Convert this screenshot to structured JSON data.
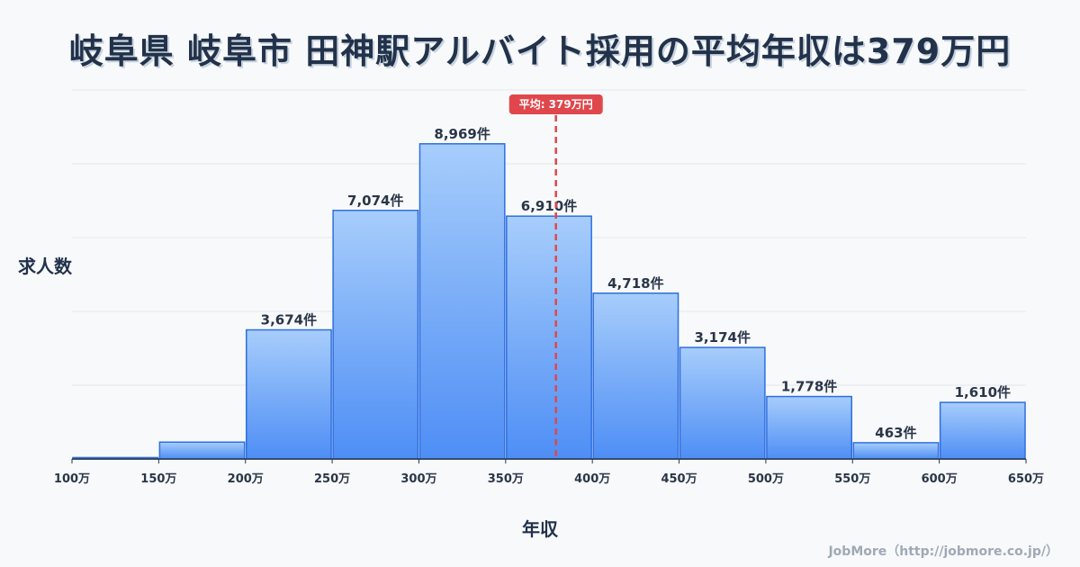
{
  "title": "岐阜県 岐阜市 田神駅アルバイト採用の平均年収は379万円",
  "credit": "JobMore（http://jobmore.co.jp/）",
  "chart_data": {
    "type": "bar",
    "title": "岐阜県 岐阜市 田神駅アルバイト採用の平均年収は379万円",
    "xlabel": "年収",
    "ylabel": "求人数",
    "bin_edges": [
      100,
      150,
      200,
      250,
      300,
      350,
      400,
      450,
      500,
      550,
      600,
      650
    ],
    "tick_labels": [
      "100万",
      "150万",
      "200万",
      "250万",
      "300万",
      "350万",
      "400万",
      "450万",
      "500万",
      "550万",
      "600万",
      "650万"
    ],
    "values": [
      40,
      480,
      3674,
      7074,
      8969,
      6910,
      4718,
      3174,
      1778,
      463,
      1610
    ],
    "data_labels": [
      "",
      "",
      "3,674件",
      "7,074件",
      "8,969件",
      "6,910件",
      "4,718件",
      "3,174件",
      "1,778件",
      "463件",
      "1,610件"
    ],
    "ylim": [
      0,
      10500
    ],
    "grid": true,
    "average": {
      "value": 379,
      "label": "平均: 379万円"
    },
    "colors": {
      "bar_top": "#a7cdfb",
      "bar_bottom": "#4e8ef5",
      "bar_stroke": "#2f6fe0",
      "average_line": "#e0474c"
    }
  }
}
